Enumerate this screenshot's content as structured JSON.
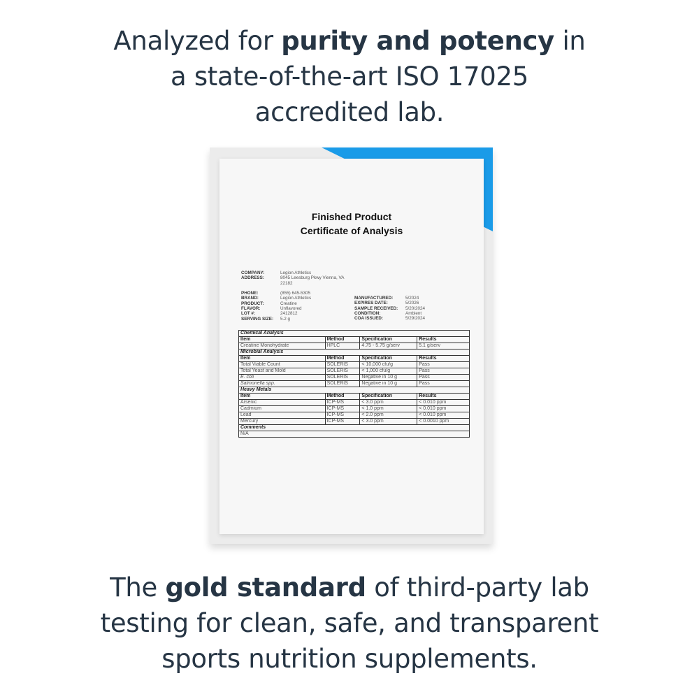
{
  "headline_top": {
    "pre": "Analyzed for ",
    "bold": "purity and potency",
    "post": " in",
    "line2": "a state-of-the-art ISO 17025",
    "line3": "accredited lab."
  },
  "headline_bottom": {
    "pre": "The ",
    "bold": "gold standard",
    "post": " of third-party lab",
    "line2": "testing for clean, safe, and transparent",
    "line3": "sports nutrition supplements."
  },
  "colors": {
    "accent": "#1a9be8",
    "text": "#263544"
  },
  "document": {
    "title1": "Finished Product",
    "title2": "Certificate of Analysis",
    "company_fields": [
      {
        "k": "COMPANY:",
        "v": "Legion Athletics"
      },
      {
        "k": "ADDRESS:",
        "v": "8045 Leesburg Pkwy Vienna, VA"
      },
      {
        "k": "",
        "v": "22182"
      }
    ],
    "left_fields": [
      {
        "k": "PHONE:",
        "v": "(855) 645-5305"
      },
      {
        "k": "BRAND:",
        "v": "Legion Athletics"
      },
      {
        "k": "PRODUCT:",
        "v": "Creatine"
      },
      {
        "k": "FLAVOR:",
        "v": "Unflavored"
      },
      {
        "k": "LOT #:",
        "v": "2412812"
      },
      {
        "k": "SERVING SIZE:",
        "v": "5.2 g"
      }
    ],
    "right_fields": [
      {
        "k": "MANUFACTURED:",
        "v": "5/2024"
      },
      {
        "k": "EXPIRES DATE:",
        "v": "5/2026"
      },
      {
        "k": "SAMPLE RECEIVED:",
        "v": "5/20/2024"
      },
      {
        "k": "CONDITION:",
        "v": "Ambient"
      },
      {
        "k": "COA ISSUED:",
        "v": "5/29/2024"
      }
    ],
    "columns": [
      "Item",
      "Method",
      "Specification",
      "Results"
    ],
    "sections": [
      {
        "title": "Chemical Analysis",
        "rows": [
          [
            "Creatine Monohydrate",
            "HPLC",
            "4.75 - 5.75 g/serv",
            "5.1 g/serv"
          ]
        ]
      },
      {
        "title": "Microbial Analysis",
        "rows": [
          [
            "Total Viable Count",
            "SOLERIS",
            "< 10,000 cfu/g",
            "Pass"
          ],
          [
            "Total Yeast and Mold",
            "SOLERIS",
            "< 1,000 cfu/g",
            "Pass"
          ],
          [
            "E. coli",
            "SOLERIS",
            "Negative in 10 g",
            "Pass"
          ],
          [
            "Salmonella spp.",
            "SOLERIS",
            "Negative in 10 g",
            "Pass"
          ]
        ]
      },
      {
        "title": "Heavy Metals",
        "rows": [
          [
            "Arsenic",
            "ICP-MS",
            "< 3.0 ppm",
            "< 0.010 ppm"
          ],
          [
            "Cadmium",
            "ICP-MS",
            "< 1.0 ppm",
            "< 0.010 ppm"
          ],
          [
            "Lead",
            "ICP-MS",
            "< 2.0 ppm",
            "< 0.010 ppm"
          ],
          [
            "Mercury",
            "ICP-MS",
            "< 3.0 ppm",
            "< 0.0010 ppm"
          ]
        ]
      }
    ],
    "comments_title": "Comments",
    "comments": "N/A"
  }
}
